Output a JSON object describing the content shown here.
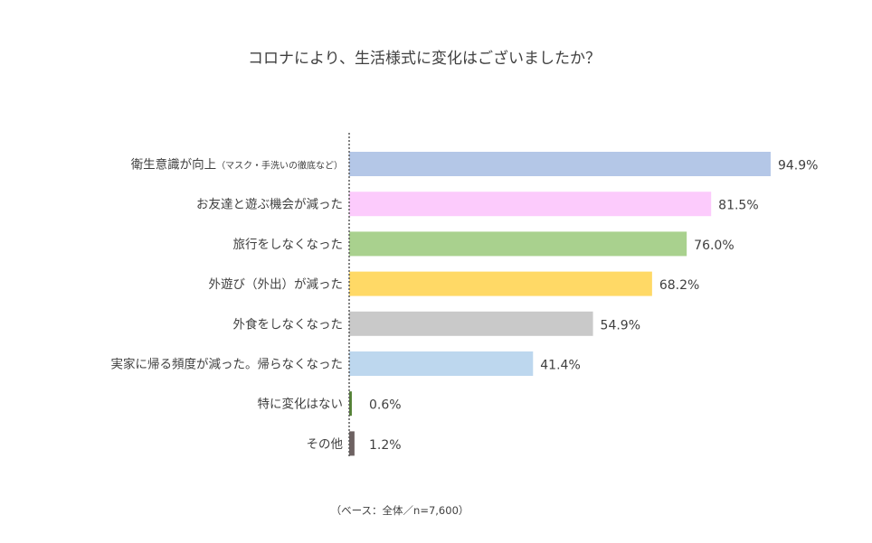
{
  "chart_data": {
    "type": "bar",
    "orientation": "horizontal",
    "title": "コロナにより、生活様式に変化はございましたか？",
    "categories": [
      {
        "main": "衛生意識が向上",
        "sub": "（マスク・手洗いの徹底など）"
      },
      {
        "main": "お友達と遊ぶ機会が減った",
        "sub": ""
      },
      {
        "main": "旅行をしなくなった",
        "sub": ""
      },
      {
        "main": "外遊び（外出）が減った",
        "sub": ""
      },
      {
        "main": "外食をしなくなった",
        "sub": ""
      },
      {
        "main": "実家に帰る頻度が減った。帰らなくなった",
        "sub": ""
      },
      {
        "main": "特に変化はない",
        "sub": ""
      },
      {
        "main": "その他",
        "sub": ""
      }
    ],
    "values": [
      94.9,
      81.5,
      76.0,
      68.2,
      54.9,
      41.4,
      0.6,
      1.2
    ],
    "value_labels": [
      "94.9%",
      "81.5%",
      "76.0%",
      "68.2%",
      "54.9%",
      "41.4%",
      "0.6%",
      "1.2%"
    ],
    "colors": [
      "#b4c7e7",
      "#fccbfc",
      "#a9d18e",
      "#ffd966",
      "#c9c9c9",
      "#bdd7ee",
      "#548235",
      "#6e6262"
    ],
    "xlim": [
      0,
      100
    ],
    "axis_style": "dotted",
    "grid": false,
    "legend": "none",
    "note": "（ベース：全体／n=7,600）"
  }
}
